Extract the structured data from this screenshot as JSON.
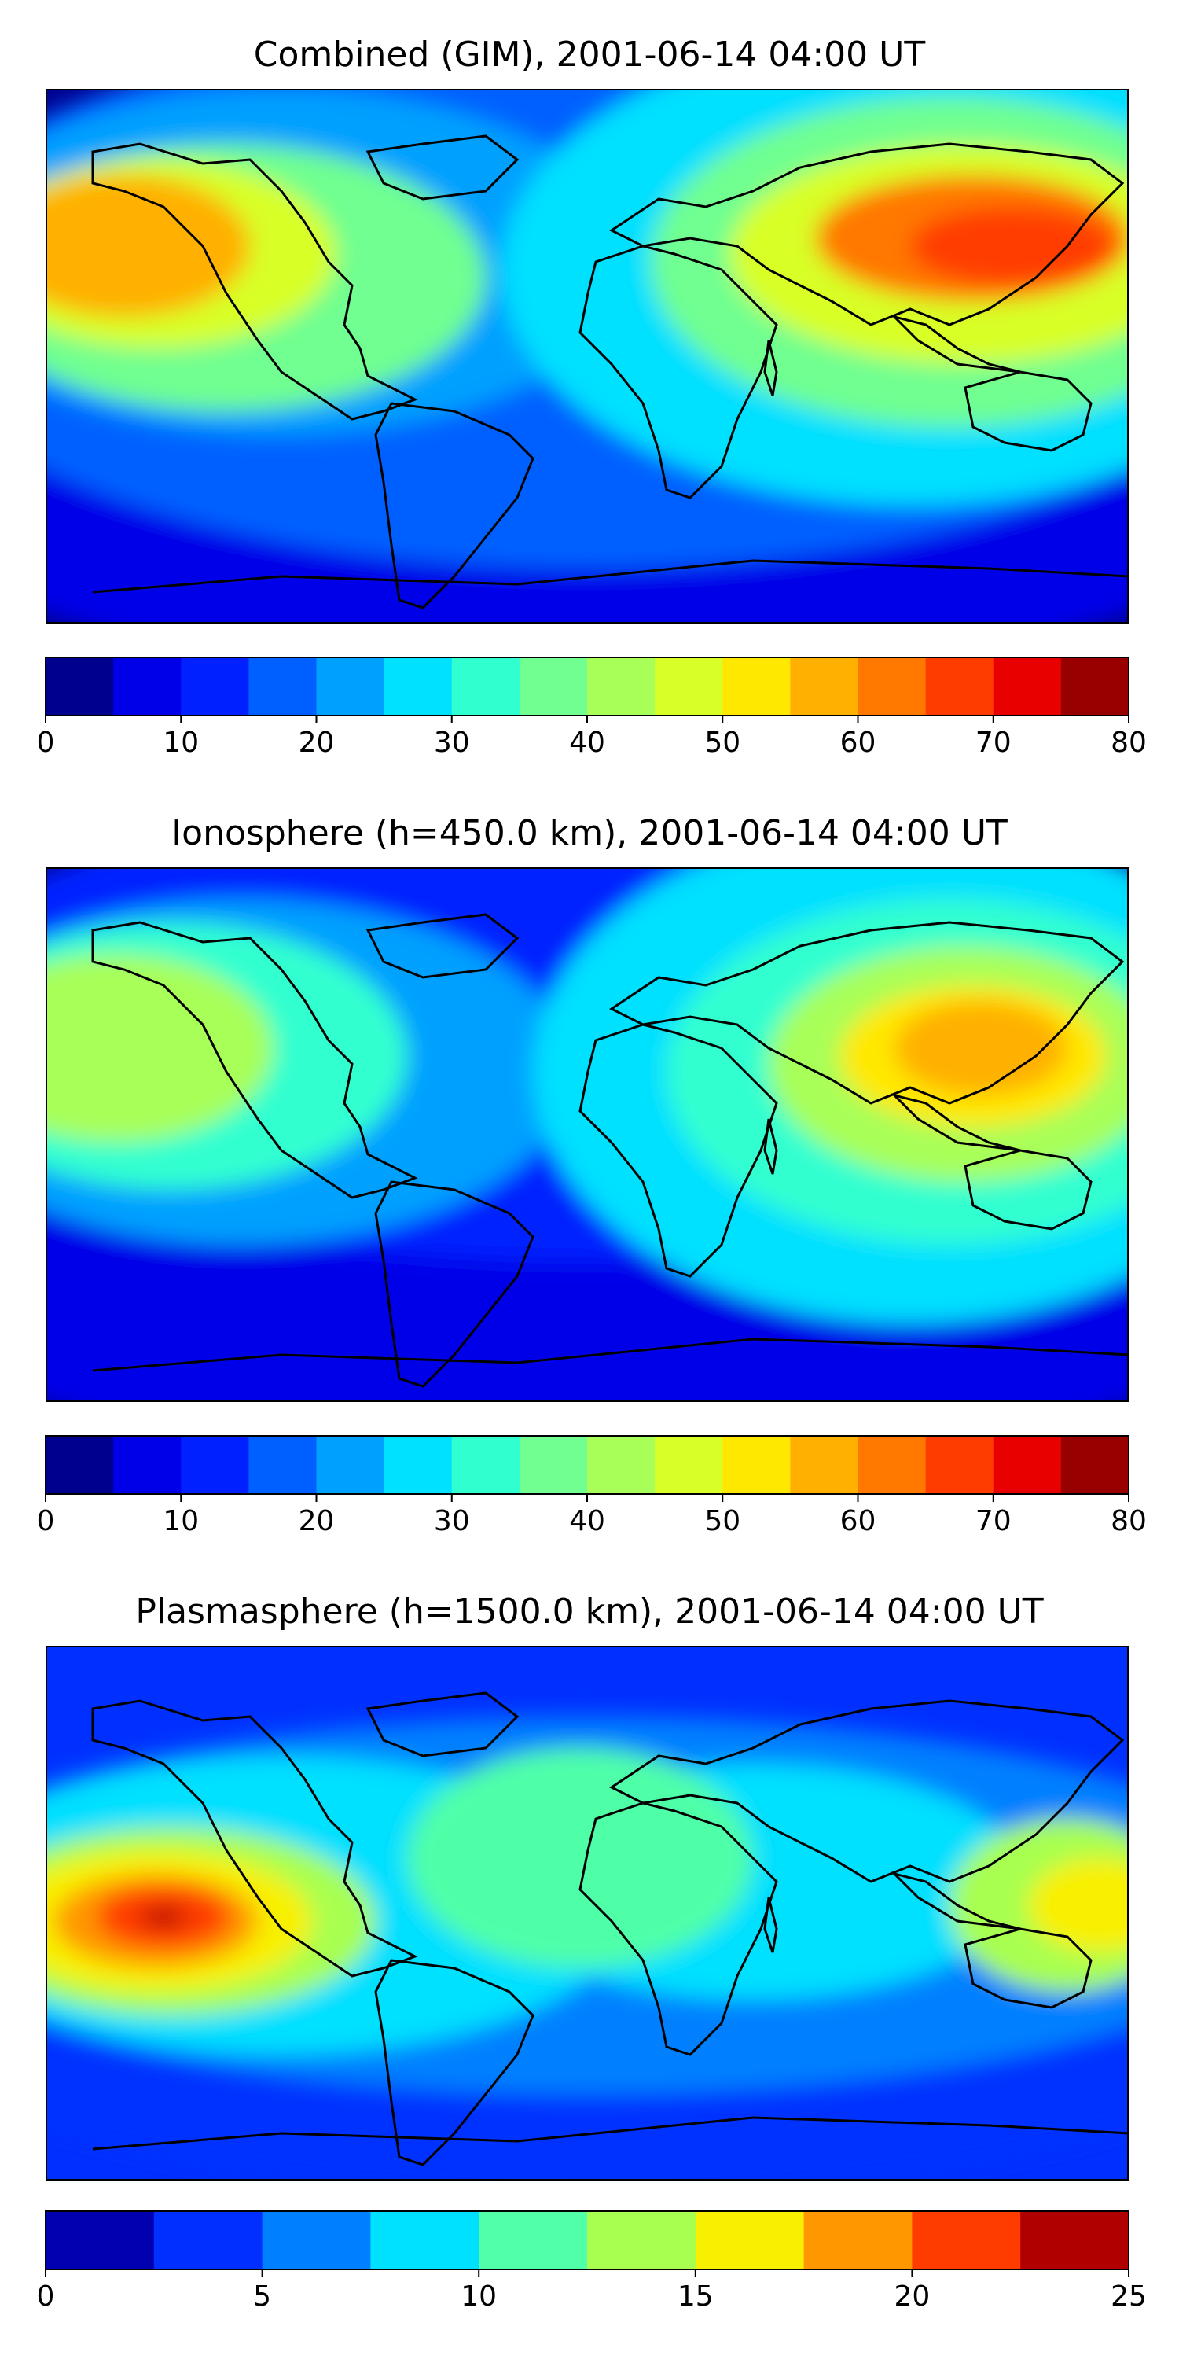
{
  "chart_data": [
    {
      "type": "heatmap",
      "title": "Combined (GIM), 2001-06-14 04:00 UT",
      "colorbar": {
        "range": [
          0,
          80
        ],
        "levels": [
          0,
          5,
          10,
          15,
          20,
          25,
          30,
          35,
          40,
          45,
          50,
          55,
          60,
          65,
          70,
          75,
          80
        ],
        "ticks": [
          0,
          10,
          20,
          30,
          40,
          50,
          60,
          70,
          80
        ],
        "tick_labels": [
          "0",
          "10",
          "20",
          "30",
          "40",
          "50",
          "60",
          "70",
          "80"
        ],
        "colors": [
          "#00008f",
          "#0000e8",
          "#0020ff",
          "#0060ff",
          "#00a0ff",
          "#00e0ff",
          "#30ffd0",
          "#70ff90",
          "#a8ff58",
          "#d8ff28",
          "#ffe800",
          "#ffb000",
          "#ff7800",
          "#ff3c00",
          "#e80000",
          "#980000"
        ]
      }
    },
    {
      "type": "heatmap",
      "title": "Ionosphere  (h=450.0 km), 2001-06-14 04:00 UT",
      "colorbar": {
        "range": [
          0,
          80
        ],
        "levels": [
          0,
          5,
          10,
          15,
          20,
          25,
          30,
          35,
          40,
          45,
          50,
          55,
          60,
          65,
          70,
          75,
          80
        ],
        "ticks": [
          0,
          10,
          20,
          30,
          40,
          50,
          60,
          70,
          80
        ],
        "tick_labels": [
          "0",
          "10",
          "20",
          "30",
          "40",
          "50",
          "60",
          "70",
          "80"
        ],
        "colors": [
          "#00008f",
          "#0000e8",
          "#0020ff",
          "#0060ff",
          "#00a0ff",
          "#00e0ff",
          "#30ffd0",
          "#70ff90",
          "#a8ff58",
          "#d8ff28",
          "#ffe800",
          "#ffb000",
          "#ff7800",
          "#ff3c00",
          "#e80000",
          "#980000"
        ]
      }
    },
    {
      "type": "heatmap",
      "title": "Plasmasphere (h=1500.0 km), 2001-06-14 04:00 UT",
      "colorbar": {
        "range": [
          0,
          25
        ],
        "levels": [
          0,
          2.5,
          5,
          7.5,
          10,
          12.5,
          15,
          17.5,
          20,
          22.5,
          25
        ],
        "ticks": [
          0,
          5,
          10,
          15,
          20,
          25
        ],
        "tick_labels": [
          "0",
          "5",
          "10",
          "15",
          "20",
          "25"
        ],
        "colors": [
          "#0000b0",
          "#0030ff",
          "#0080ff",
          "#00e0ff",
          "#50ffa8",
          "#a8ff50",
          "#f8f000",
          "#ff9800",
          "#ff3c00",
          "#b00000"
        ]
      }
    }
  ]
}
